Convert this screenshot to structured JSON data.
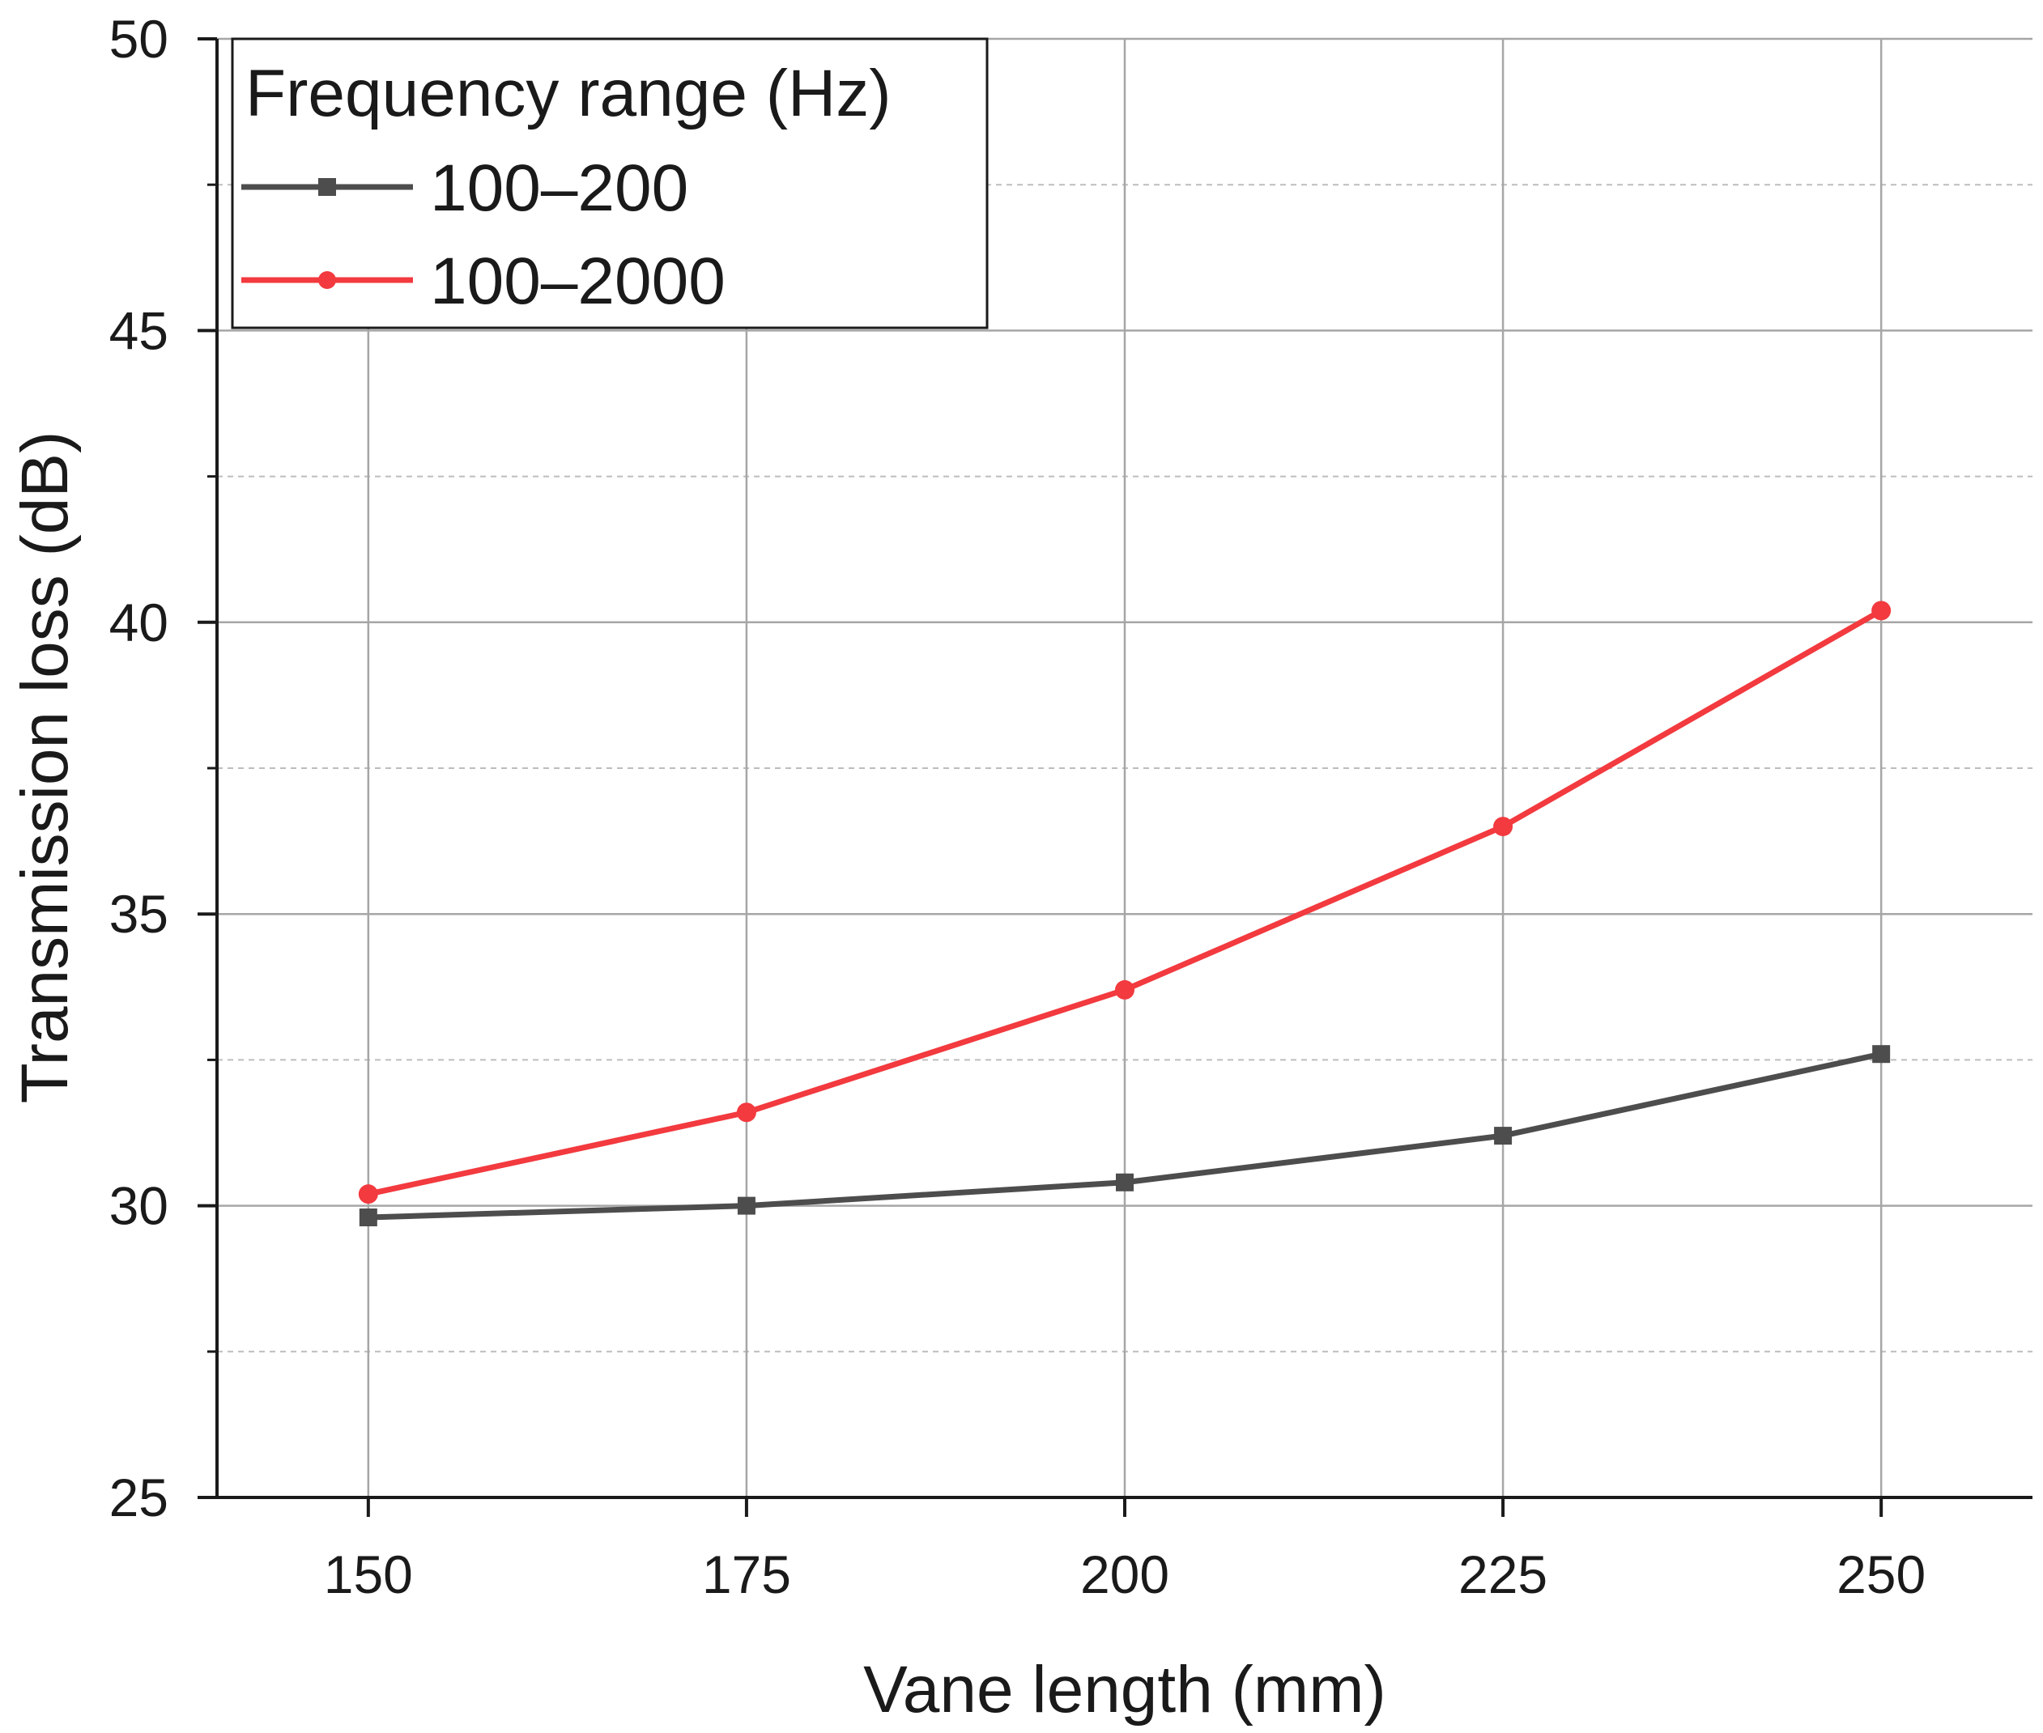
{
  "chart_data": {
    "type": "line",
    "title": "",
    "xlabel": "Vane length (mm)",
    "ylabel": "Transmission loss (dB)",
    "xlim": [
      140,
      260
    ],
    "ylim": [
      25,
      50
    ],
    "x": [
      150,
      175,
      200,
      225,
      250
    ],
    "xticks": [
      150,
      175,
      200,
      225,
      250
    ],
    "xtick_labels": [
      "150",
      "175",
      "200",
      "225",
      "250"
    ],
    "yticks": [
      25,
      30,
      35,
      40,
      45,
      50
    ],
    "ytick_labels": [
      "25",
      "30",
      "35",
      "40",
      "45",
      "50"
    ],
    "minor_y_gridlines": [
      27.5,
      32.5,
      37.5,
      42.5,
      47.5
    ],
    "grid": true,
    "legend": {
      "title": "Frequency range (Hz)",
      "placement": "top-left"
    },
    "series": [
      {
        "name": "100–200",
        "color": "#4d4d4d",
        "marker": "square",
        "values": [
          29.8,
          30.0,
          30.4,
          31.2,
          32.6
        ]
      },
      {
        "name": "100–2000",
        "color": "#f23a3f",
        "marker": "circle",
        "values": [
          30.2,
          31.6,
          33.7,
          36.5,
          40.2
        ]
      }
    ]
  }
}
